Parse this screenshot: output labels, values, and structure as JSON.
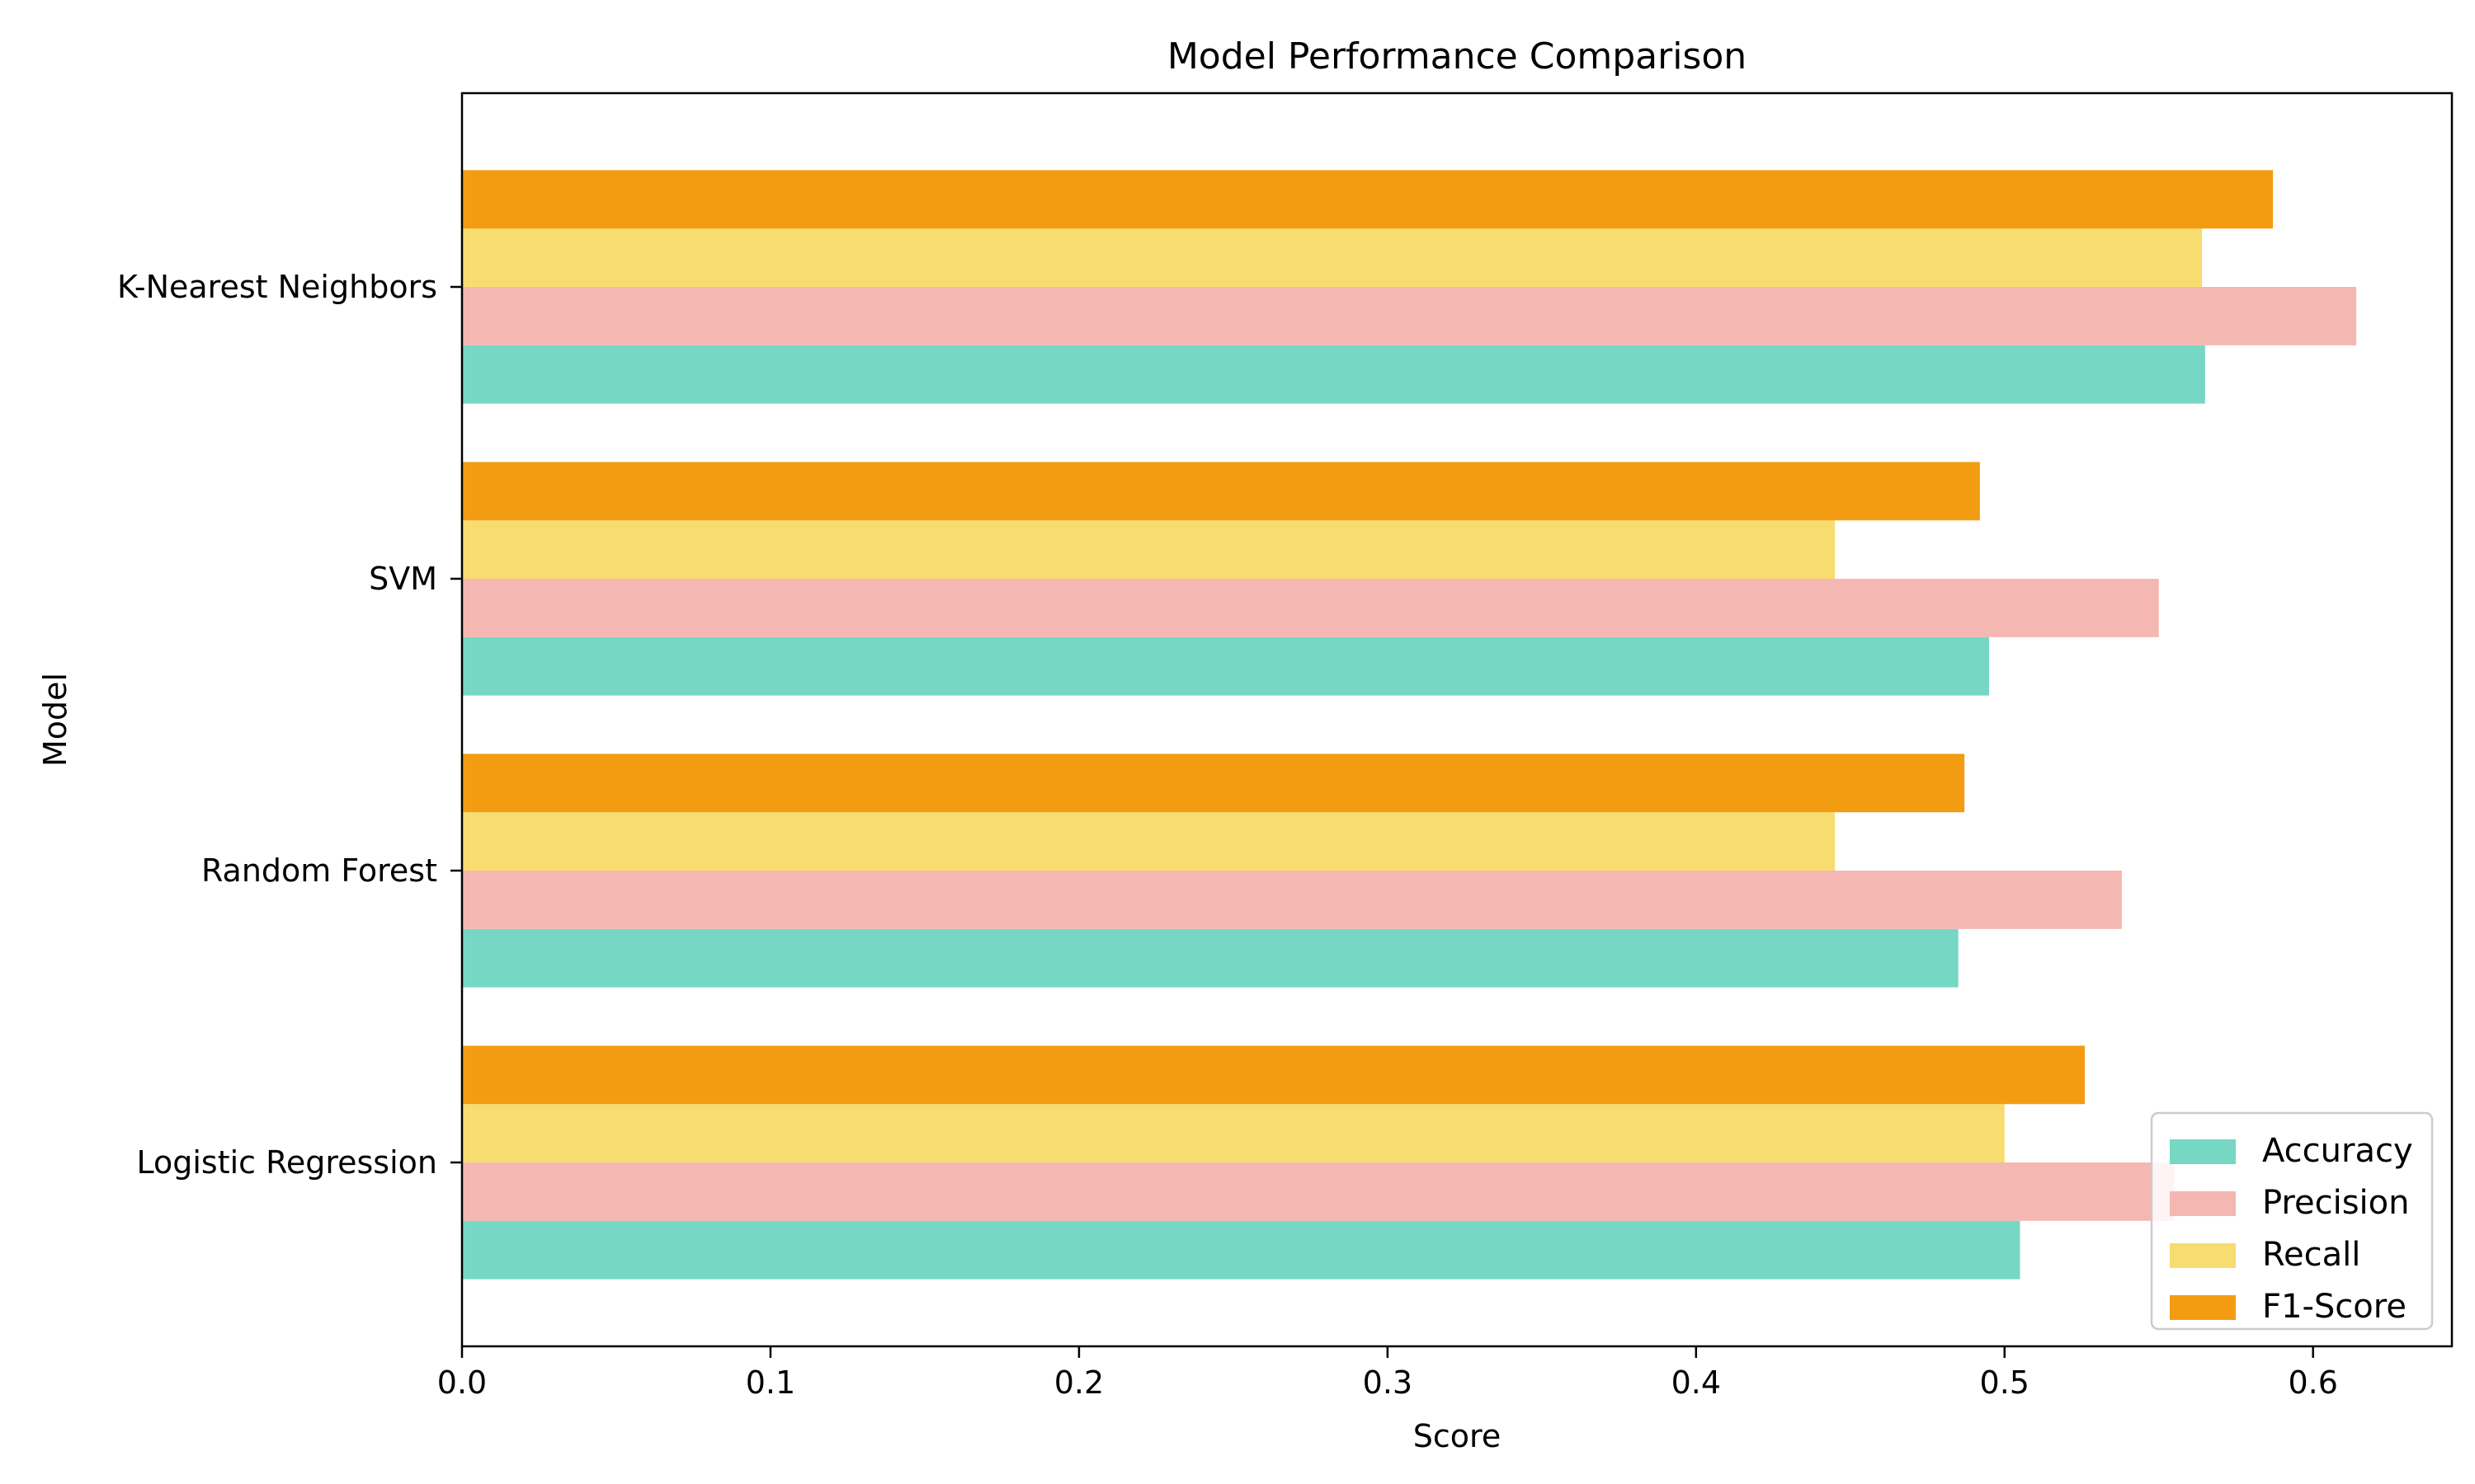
{
  "chart_data": {
    "type": "bar",
    "orientation": "horizontal",
    "title": "Model Performance Comparison",
    "xlabel": "Score",
    "ylabel": "Model",
    "categories": [
      "Logistic Regression",
      "Random Forest",
      "SVM",
      "K-Nearest Neighbors"
    ],
    "series": [
      {
        "name": "Accuracy",
        "color": "#76d7c4",
        "values": [
          0.505,
          0.485,
          0.495,
          0.565
        ]
      },
      {
        "name": "Precision",
        "color": "#f5b7b1",
        "values": [
          0.555,
          0.538,
          0.55,
          0.614
        ]
      },
      {
        "name": "Recall",
        "color": "#f7dc6f",
        "values": [
          0.5,
          0.445,
          0.445,
          0.564
        ]
      },
      {
        "name": "F1-Score",
        "color": "#f39c12",
        "values": [
          0.526,
          0.487,
          0.492,
          0.587
        ]
      }
    ],
    "xlim": [
      0,
      0.645
    ],
    "xticks": [
      0.0,
      0.1,
      0.2,
      0.3,
      0.4,
      0.5,
      0.6
    ],
    "xtick_labels": [
      "0.0",
      "0.1",
      "0.2",
      "0.3",
      "0.4",
      "0.5",
      "0.6"
    ],
    "grid": false,
    "legend_position": "bottom-right"
  }
}
